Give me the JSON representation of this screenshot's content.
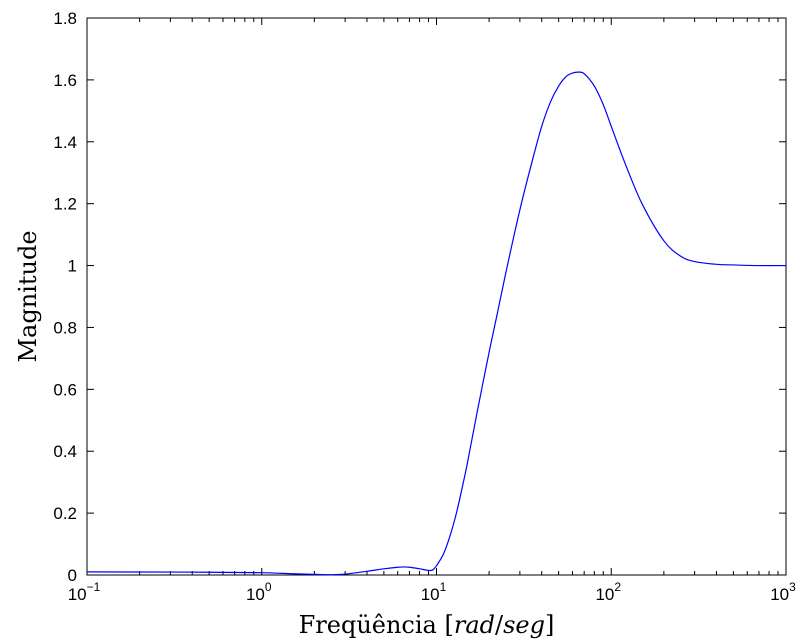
{
  "chart_data": {
    "type": "line",
    "title": "",
    "xlabel": {
      "prefix": "Freqüência [",
      "unit_italic_1": "rad",
      "slash": "/",
      "unit_italic_2": "seg",
      "suffix": "]"
    },
    "ylabel": "Magnitude",
    "xscale": "log",
    "xlim": [
      0.1,
      1000
    ],
    "ylim": [
      0,
      1.8
    ],
    "grid": false,
    "legend": "none",
    "line_color": "#0000ff",
    "x_ticks": [
      {
        "value": 0.1,
        "base": "10",
        "exp": "−1"
      },
      {
        "value": 1,
        "base": "10",
        "exp": "0"
      },
      {
        "value": 10,
        "base": "10",
        "exp": "1"
      },
      {
        "value": 100,
        "base": "10",
        "exp": "2"
      },
      {
        "value": 1000,
        "base": "10",
        "exp": "3"
      }
    ],
    "y_ticks": [
      {
        "value": 0,
        "label": "0"
      },
      {
        "value": 0.2,
        "label": "0.2"
      },
      {
        "value": 0.4,
        "label": "0.4"
      },
      {
        "value": 0.6,
        "label": "0.6"
      },
      {
        "value": 0.8,
        "label": "0.8"
      },
      {
        "value": 1.0,
        "label": "1"
      },
      {
        "value": 1.2,
        "label": "1.2"
      },
      {
        "value": 1.4,
        "label": "1.4"
      },
      {
        "value": 1.6,
        "label": "1.6"
      },
      {
        "value": 1.8,
        "label": "1.8"
      }
    ],
    "series": [
      {
        "x": [
          0.1,
          0.2,
          0.5,
          1,
          1.5,
          2,
          2.5,
          3,
          4,
          5,
          6,
          6.5,
          7,
          8,
          9,
          9.5,
          10,
          11,
          12,
          13,
          14,
          15,
          17,
          20,
          22,
          25,
          30,
          35,
          40,
          45,
          50,
          55,
          60,
          65,
          70,
          80,
          90,
          100,
          120,
          150,
          200,
          250,
          300,
          400,
          500,
          700,
          1000
        ],
        "y": [
          0.01,
          0.0097,
          0.009,
          0.0075,
          0.004,
          0.002,
          0.001,
          0.003,
          0.012,
          0.02,
          0.025,
          0.026,
          0.025,
          0.02,
          0.015,
          0.016,
          0.03,
          0.07,
          0.13,
          0.2,
          0.28,
          0.36,
          0.52,
          0.72,
          0.83,
          0.98,
          1.18,
          1.33,
          1.45,
          1.53,
          1.58,
          1.61,
          1.622,
          1.625,
          1.62,
          1.58,
          1.52,
          1.45,
          1.33,
          1.2,
          1.08,
          1.03,
          1.013,
          1.004,
          1.002,
          1.0,
          1.0
        ]
      }
    ]
  }
}
